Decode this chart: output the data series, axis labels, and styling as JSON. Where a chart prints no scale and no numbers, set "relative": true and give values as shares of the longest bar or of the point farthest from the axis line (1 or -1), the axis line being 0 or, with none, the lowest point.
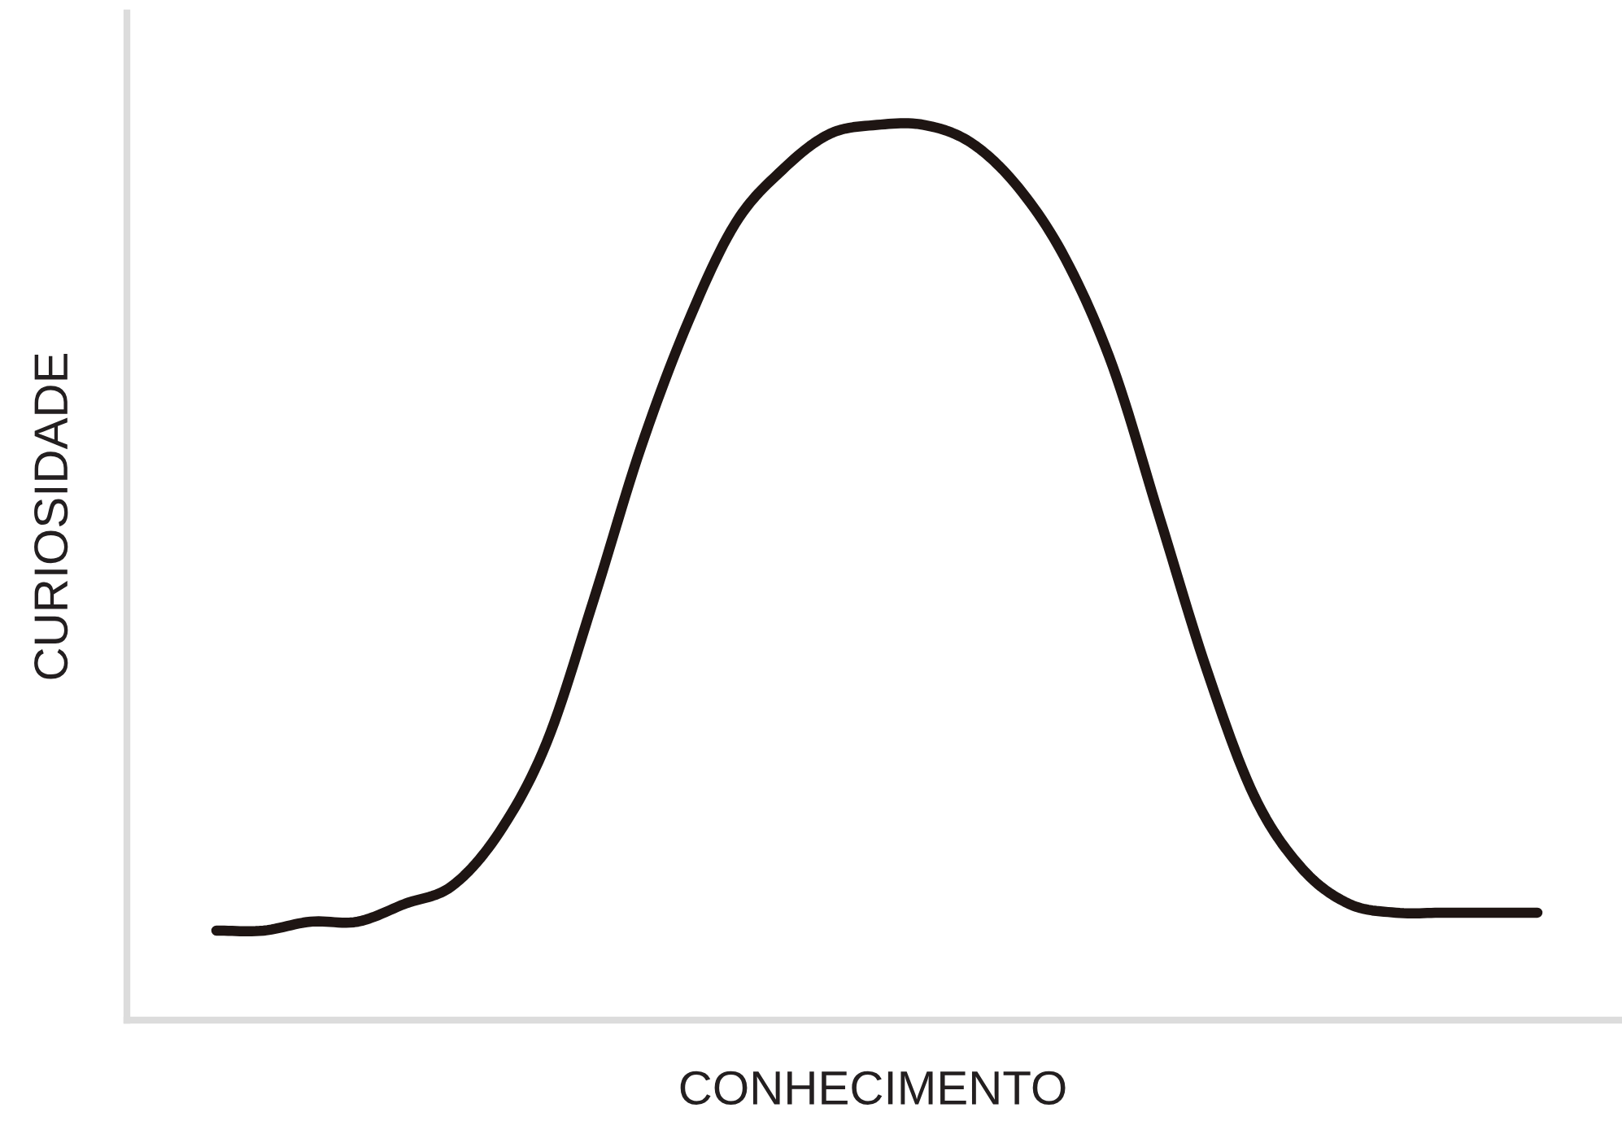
{
  "chart_data": {
    "type": "line",
    "xlabel": "CONHECIMENTO",
    "ylabel": "CURIOSIDADE",
    "relative": true,
    "categories": [
      null,
      null,
      null,
      null,
      null,
      null,
      null,
      null,
      null,
      null,
      null,
      null,
      null,
      null,
      null,
      null,
      null,
      null,
      null,
      null,
      null,
      null,
      null,
      null,
      null,
      null,
      null,
      null,
      null
    ],
    "series": [
      {
        "color": "#1e1513",
        "values": [
          0.1,
          0.1,
          0.11,
          0.11,
          0.13,
          0.15,
          0.21,
          0.31,
          0.47,
          0.64,
          0.78,
          0.89,
          0.95,
          0.99,
          1.0,
          1.0,
          0.98,
          0.93,
          0.85,
          0.73,
          0.56,
          0.39,
          0.25,
          0.17,
          0.13,
          0.12,
          0.12,
          0.12,
          0.12
        ]
      }
    ],
    "legend": false,
    "marker": "none",
    "line_style": "solid"
  }
}
